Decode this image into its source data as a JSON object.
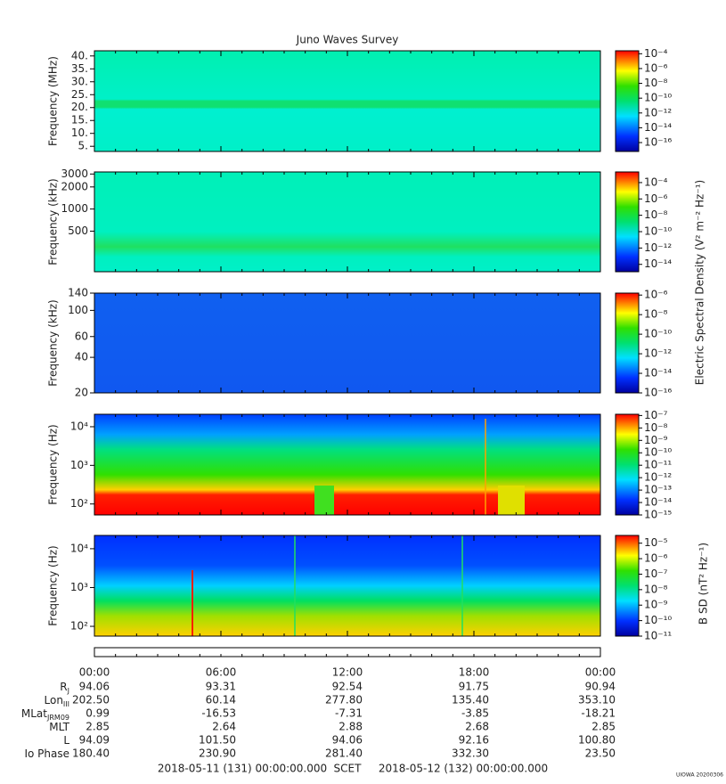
{
  "title": "Juno Waves Survey",
  "panels": [
    {
      "ylabel": "Frequency (MHz)",
      "log": false,
      "ylim": [
        3,
        42
      ],
      "yticks": [
        {
          "value": 5,
          "label": "5."
        },
        {
          "value": 10,
          "label": "10."
        },
        {
          "value": 15,
          "label": "15."
        },
        {
          "value": 20,
          "label": "20."
        },
        {
          "value": 25,
          "label": "25."
        },
        {
          "value": 30,
          "label": "30."
        },
        {
          "value": 35,
          "label": "35."
        },
        {
          "value": 40,
          "label": "40."
        }
      ],
      "clim": [
        -17.2,
        -3.6
      ],
      "cticks": [
        {
          "value": -4,
          "label": "10⁻⁴"
        },
        {
          "value": -6,
          "label": "10⁻⁶"
        },
        {
          "value": -8,
          "label": "10⁻⁸"
        },
        {
          "value": -10,
          "label": "10⁻¹⁰"
        },
        {
          "value": -12,
          "label": "10⁻¹²"
        },
        {
          "value": -14,
          "label": "10⁻¹⁴"
        },
        {
          "value": -16,
          "label": "10⁻¹⁶"
        }
      ]
    },
    {
      "ylabel": "Frequency (kHz)",
      "log": true,
      "ylim": [
        140,
        3200
      ],
      "yticks": [
        500,
        1000,
        2000,
        3000
      ],
      "clim": [
        -14.9,
        -2.7
      ],
      "cticks": [
        {
          "value": -4,
          "label": "10⁻⁴"
        },
        {
          "value": -6,
          "label": "10⁻⁶"
        },
        {
          "value": -8,
          "label": "10⁻⁸"
        },
        {
          "value": -10,
          "label": "10⁻¹⁰"
        },
        {
          "value": -12,
          "label": "10⁻¹²"
        },
        {
          "value": -14,
          "label": "10⁻¹⁴"
        }
      ]
    },
    {
      "ylabel": "Frequency (kHz)",
      "log": true,
      "ylim": [
        20,
        140
      ],
      "yticks": [
        20,
        40,
        60,
        100,
        140
      ],
      "clim": [
        -16,
        -5.8
      ],
      "cticks": [
        {
          "value": -6,
          "label": "10⁻⁶"
        },
        {
          "value": -8,
          "label": "10⁻⁸"
        },
        {
          "value": -10,
          "label": "10⁻¹⁰"
        },
        {
          "value": -12,
          "label": "10⁻¹²"
        },
        {
          "value": -14,
          "label": "10⁻¹⁴"
        },
        {
          "value": -16,
          "label": "10⁻¹⁶"
        }
      ]
    },
    {
      "ylabel": "Frequency (Hz)",
      "log": true,
      "ylim": [
        52,
        21000
      ],
      "yticks": [
        {
          "value": 100,
          "label": "10²"
        },
        {
          "value": 1000,
          "label": "10³"
        },
        {
          "value": 10000,
          "label": "10⁴"
        }
      ],
      "clim": [
        -15,
        -6.9
      ],
      "cticks": [
        {
          "value": -7,
          "label": "10⁻⁷"
        },
        {
          "value": -8,
          "label": "10⁻⁸"
        },
        {
          "value": -9,
          "label": "10⁻⁹"
        },
        {
          "value": -10,
          "label": "10⁻¹⁰"
        },
        {
          "value": -11,
          "label": "10⁻¹¹"
        },
        {
          "value": -12,
          "label": "10⁻¹²"
        },
        {
          "value": -13,
          "label": "10⁻¹³"
        },
        {
          "value": -14,
          "label": "10⁻¹⁴"
        },
        {
          "value": -15,
          "label": "10⁻¹⁵"
        }
      ]
    },
    {
      "ylabel": "Frequency (Hz)",
      "log": true,
      "ylim": [
        56,
        22000
      ],
      "yticks": [
        {
          "value": 100,
          "label": "10²"
        },
        {
          "value": 1000,
          "label": "10³"
        },
        {
          "value": 10000,
          "label": "10⁴"
        }
      ],
      "clim": [
        -11,
        -4.5
      ],
      "cticks": [
        {
          "value": -5,
          "label": "10⁻⁵"
        },
        {
          "value": -6,
          "label": "10⁻⁶"
        },
        {
          "value": -7,
          "label": "10⁻⁷"
        },
        {
          "value": -8,
          "label": "10⁻⁸"
        },
        {
          "value": -9,
          "label": "10⁻⁹"
        },
        {
          "value": -10,
          "label": "10⁻¹⁰"
        },
        {
          "value": -11,
          "label": "10⁻¹¹"
        }
      ]
    }
  ],
  "colorbar_labels": [
    "Electric Spectral Density (V² m⁻² Hz⁻¹)",
    "B SD (nT² Hz⁻¹)"
  ],
  "time_ticks": [
    "00:00",
    "06:00",
    "12:00",
    "18:00",
    "00:00"
  ],
  "ephemeris": [
    {
      "label": "R",
      "sub": "J",
      "values": [
        "94.06",
        "93.31",
        "92.54",
        "91.75",
        "90.94"
      ]
    },
    {
      "label": "Lon",
      "sub": "III",
      "values": [
        "202.50",
        "60.14",
        "277.80",
        "135.40",
        "353.10"
      ]
    },
    {
      "label": "MLat",
      "sub": "JRM09",
      "values": [
        "0.99",
        "-16.53",
        "-7.31",
        "-3.85",
        "-18.21"
      ]
    },
    {
      "label": "MLT",
      "values": [
        "2.85",
        "2.64",
        "2.88",
        "2.68",
        "2.85"
      ]
    },
    {
      "label": "L",
      "values": [
        "94.09",
        "101.50",
        "94.06",
        "92.16",
        "100.80"
      ]
    },
    {
      "label": "Io Phase",
      "values": [
        "180.40",
        "230.90",
        "281.40",
        "332.30",
        "23.50"
      ]
    }
  ],
  "footer": {
    "start": "2018-05-11 (131) 00:00:00.000",
    "scet": "SCET",
    "end": "2018-05-12 (132) 00:00:00.000"
  },
  "stamp": "UIOWA 20200306"
}
